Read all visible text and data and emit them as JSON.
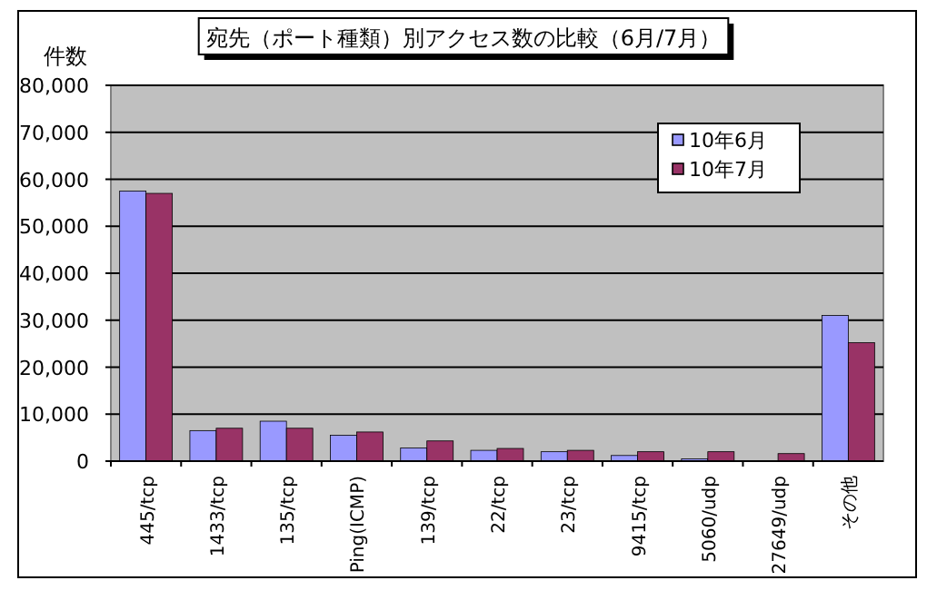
{
  "chart_data": {
    "type": "bar",
    "title": "宛先（ポート種類）別アクセス数の比較（6月/7月）",
    "ylabel": "件数",
    "categories": [
      "445/tcp",
      "1433/tcp",
      "135/tcp",
      "Ping(ICMP)",
      "139/tcp",
      "22/tcp",
      "23/tcp",
      "9415/tcp",
      "5060/udp",
      "27649/udp",
      "その他"
    ],
    "series": [
      {
        "name": "10年6月",
        "color": "#9999ff",
        "values": [
          57500,
          6500,
          8500,
          5500,
          2800,
          2300,
          2000,
          1200,
          500,
          0,
          31000
        ]
      },
      {
        "name": "10年7月",
        "color": "#993366",
        "values": [
          57000,
          7000,
          7000,
          6200,
          4300,
          2700,
          2300,
          2000,
          2000,
          1600,
          25200
        ]
      }
    ],
    "ylim": [
      0,
      80000
    ],
    "yticks": [
      {
        "value": 0,
        "label": "0"
      },
      {
        "value": 10000,
        "label": "10,000"
      },
      {
        "value": 20000,
        "label": "20,000"
      },
      {
        "value": 30000,
        "label": "30,000"
      },
      {
        "value": 40000,
        "label": "40,000"
      },
      {
        "value": 50000,
        "label": "50,000"
      },
      {
        "value": 60000,
        "label": "60,000"
      },
      {
        "value": 70000,
        "label": "70,000"
      },
      {
        "value": 80000,
        "label": "80,000"
      }
    ],
    "grid": "y",
    "legend": "top right"
  }
}
